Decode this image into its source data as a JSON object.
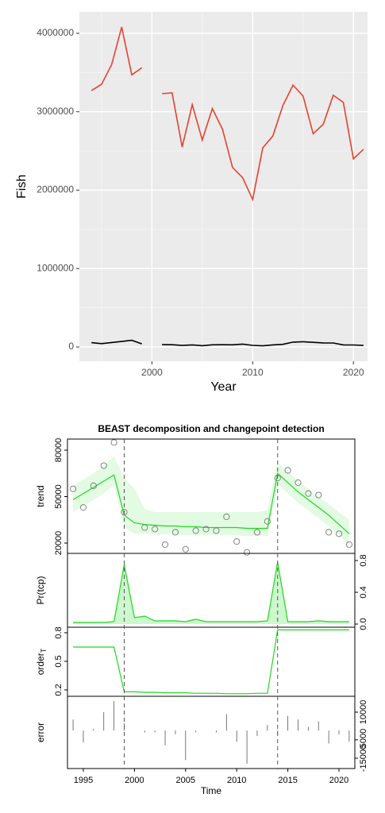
{
  "chart_data": [
    {
      "type": "line",
      "xlabel": "Year",
      "ylabel": "Fish",
      "x": [
        1994,
        1995,
        1996,
        1997,
        1998,
        1999,
        2000,
        2001,
        2002,
        2003,
        2004,
        2005,
        2006,
        2007,
        2008,
        2009,
        2010,
        2011,
        2012,
        2013,
        2014,
        2015,
        2016,
        2017,
        2018,
        2019,
        2020,
        2021
      ],
      "xlim": [
        1992.8,
        2021.4
      ],
      "xticks": [
        2000,
        2010,
        2020
      ],
      "ylim": [
        -182000,
        4273000
      ],
      "yticks": [
        0,
        1000000,
        2000000,
        3000000,
        4000000
      ],
      "grid": true,
      "series": [
        {
          "color": "#e8412f",
          "values": [
            3270000,
            3350000,
            3600000,
            4080000,
            3470000,
            3560000,
            null,
            3230000,
            3240000,
            2550000,
            3090000,
            2640000,
            3040000,
            2780000,
            2290000,
            2160000,
            1880000,
            2540000,
            2690000,
            3080000,
            3340000,
            3200000,
            2720000,
            2840000,
            3210000,
            3120000,
            2400000,
            2520000
          ]
        },
        {
          "color": "#000000",
          "values": [
            55000,
            43000,
            57000,
            70000,
            85000,
            40000,
            null,
            30000,
            29000,
            19000,
            27000,
            16000,
            28000,
            29000,
            28000,
            37000,
            21000,
            14000,
            27000,
            34000,
            62000,
            67000,
            59000,
            52000,
            51000,
            27000,
            26000,
            19000
          ]
        }
      ]
    },
    {
      "type": "decomposition",
      "title": "BEAST decomposition and changepoint detection",
      "xlabel": "Time",
      "x": [
        1994,
        1995,
        1996,
        1997,
        1998,
        1999,
        2000,
        2001,
        2002,
        2003,
        2004,
        2005,
        2006,
        2007,
        2008,
        2009,
        2010,
        2011,
        2012,
        2013,
        2014,
        2015,
        2016,
        2017,
        2018,
        2019,
        2020,
        2021
      ],
      "xlim": [
        1993.45,
        2021.55
      ],
      "xticks": [
        1995,
        2000,
        2005,
        2010,
        2015,
        2020
      ],
      "changepoints": [
        1999,
        2014
      ],
      "color": "#1fd81f",
      "panels": [
        {
          "ylabel": "trend",
          "side": "left",
          "mark": "band",
          "ylim": [
            13330,
            87180
          ],
          "yticks": [
            20000,
            50000,
            80000
          ],
          "points": [
            55000,
            43000,
            57000,
            70000,
            85000,
            40000,
            null,
            30000,
            29000,
            19000,
            27000,
            16000,
            28000,
            29000,
            28000,
            37000,
            21000,
            14000,
            27000,
            34000,
            62000,
            67000,
            59000,
            52000,
            51000,
            27000,
            26000,
            19000
          ],
          "values": [
            48000,
            52000,
            56000,
            60000,
            64000,
            38000,
            33000,
            32000,
            31500,
            31000,
            31000,
            30500,
            30500,
            30000,
            30000,
            30000,
            30000,
            29500,
            29500,
            29500,
            65000,
            59000,
            53000,
            48000,
            43000,
            38000,
            32000,
            26000
          ],
          "upper": [
            57000,
            61000,
            65000,
            70000,
            76000,
            62000,
            55000,
            42000,
            40000,
            40000,
            40000,
            40000,
            40000,
            40000,
            40000,
            40000,
            40000,
            40000,
            40000,
            41000,
            72000,
            66000,
            60000,
            55000,
            50000,
            45000,
            40000,
            35000
          ],
          "lower": [
            40000,
            44000,
            48000,
            52000,
            58000,
            30000,
            26000,
            26000,
            25500,
            25500,
            25500,
            25000,
            25000,
            25000,
            25000,
            25000,
            25000,
            24500,
            24500,
            24500,
            58000,
            52000,
            46000,
            41000,
            36000,
            31000,
            25000,
            19000
          ]
        },
        {
          "ylabel": "Pr(tcp)",
          "side": "right",
          "mark": "area",
          "ylim": [
            -0.04,
            0.89
          ],
          "yticks": [
            {
              "value": 0,
              "label": "0.0"
            },
            0.4,
            0.8
          ],
          "values": [
            0.02,
            0.02,
            0.02,
            0.02,
            0.03,
            0.75,
            0.08,
            0.1,
            0.04,
            0.04,
            0.04,
            0.03,
            0.06,
            0.03,
            0.03,
            0.03,
            0.03,
            0.03,
            0.03,
            0.04,
            0.78,
            0.03,
            0.03,
            0.03,
            0.04,
            0.03,
            0.03,
            0.03
          ]
        },
        {
          "ylabel": "order",
          "ylabel_sub": "T",
          "side": "left",
          "mark": "line",
          "ylim": [
            0.133,
            0.858
          ],
          "yticks": [
            0.2,
            0.5,
            0.8
          ],
          "values": [
            0.65,
            0.65,
            0.65,
            0.65,
            0.65,
            0.18,
            0.18,
            0.175,
            0.175,
            0.17,
            0.17,
            0.17,
            0.165,
            0.165,
            0.165,
            0.16,
            0.16,
            0.16,
            0.165,
            0.165,
            0.83,
            0.83,
            0.83,
            0.83,
            0.83,
            0.83,
            0.83,
            0.83
          ]
        },
        {
          "ylabel": "error",
          "side": "right",
          "mark": "bars",
          "ylim": [
            -20600,
            18600
          ],
          "yticks": [
            -15000,
            -5000,
            10000
          ],
          "values": [
            6000,
            -6500,
            1000,
            10000,
            16000,
            4000,
            null,
            -1000,
            -1000,
            -8000,
            -2000,
            -16000,
            -1000,
            0,
            -1000,
            9000,
            -6000,
            -18000,
            -3000,
            3000,
            -2000,
            8000,
            6000,
            2000,
            5000,
            -7000,
            -2000,
            -6000
          ]
        }
      ]
    }
  ]
}
